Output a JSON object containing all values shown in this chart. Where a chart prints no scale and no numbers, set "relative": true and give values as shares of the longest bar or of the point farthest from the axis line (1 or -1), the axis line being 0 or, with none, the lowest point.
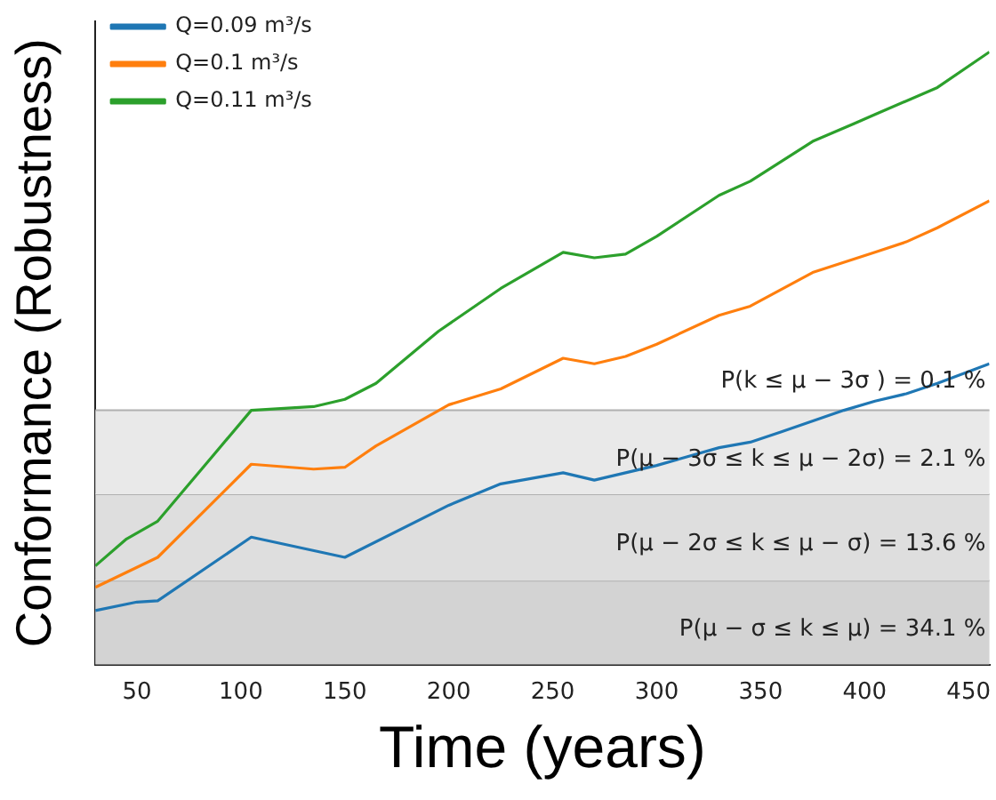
{
  "chart_data": {
    "type": "line",
    "xlabel": "Time (years)",
    "ylabel": "Conformance (Robustness)",
    "relative": true,
    "xlim": [
      30,
      460
    ],
    "xticks": [
      50,
      100,
      150,
      200,
      250,
      300,
      350,
      400,
      450
    ],
    "grid": false,
    "legend": "top left",
    "marker": "none",
    "line_style": "solid",
    "series": [
      {
        "name": "Q=0.09 m³/s",
        "color": "#1f77b4",
        "x": [
          30,
          50,
          60,
          105,
          150,
          200,
          225,
          255,
          270,
          300,
          330,
          345,
          360,
          390,
          405,
          420,
          435,
          460
        ],
        "values": [
          0.088,
          0.102,
          0.104,
          0.208,
          0.175,
          0.26,
          0.295,
          0.313,
          0.301,
          0.325,
          0.354,
          0.363,
          0.38,
          0.415,
          0.43,
          0.442,
          0.459,
          0.491
        ]
      },
      {
        "name": "Q=0.1 m³/s",
        "color": "#ff7f0e",
        "x": [
          30,
          60,
          105,
          135,
          150,
          165,
          200,
          225,
          255,
          270,
          285,
          300,
          330,
          345,
          375,
          405,
          420,
          435,
          460
        ],
        "values": [
          0.126,
          0.175,
          0.327,
          0.319,
          0.322,
          0.357,
          0.424,
          0.45,
          0.5,
          0.491,
          0.503,
          0.523,
          0.57,
          0.585,
          0.64,
          0.673,
          0.69,
          0.713,
          0.757
        ]
      },
      {
        "name": "Q=0.11 m³/s",
        "color": "#2ca02c",
        "x": [
          30,
          45,
          60,
          105,
          135,
          150,
          165,
          195,
          225,
          255,
          270,
          285,
          300,
          330,
          345,
          375,
          395,
          405,
          435,
          460
        ],
        "values": [
          0.161,
          0.205,
          0.234,
          0.415,
          0.421,
          0.433,
          0.459,
          0.544,
          0.614,
          0.673,
          0.664,
          0.67,
          0.699,
          0.766,
          0.789,
          0.854,
          0.883,
          0.898,
          0.942,
          1
        ]
      }
    ],
    "bands": [
      {
        "axis": "y",
        "from": 0,
        "to": 0.137,
        "label": "P(μ − σ ≤ k ≤ μ) = 34.1 %",
        "color": "#d3d3d3"
      },
      {
        "axis": "y",
        "from": 0.137,
        "to": 0.278,
        "label": "P(μ − 2σ ≤ k ≤ μ − σ) = 13.6 %",
        "color": "#dedede"
      },
      {
        "axis": "y",
        "from": 0.278,
        "to": 0.415,
        "label": "P(μ − 3σ ≤ k ≤ μ − 2σ) = 2.1 %",
        "color": "#e9e9e9"
      }
    ],
    "annotations": [
      "P(k ≤ μ − 3σ ) = 0.1 %"
    ]
  }
}
